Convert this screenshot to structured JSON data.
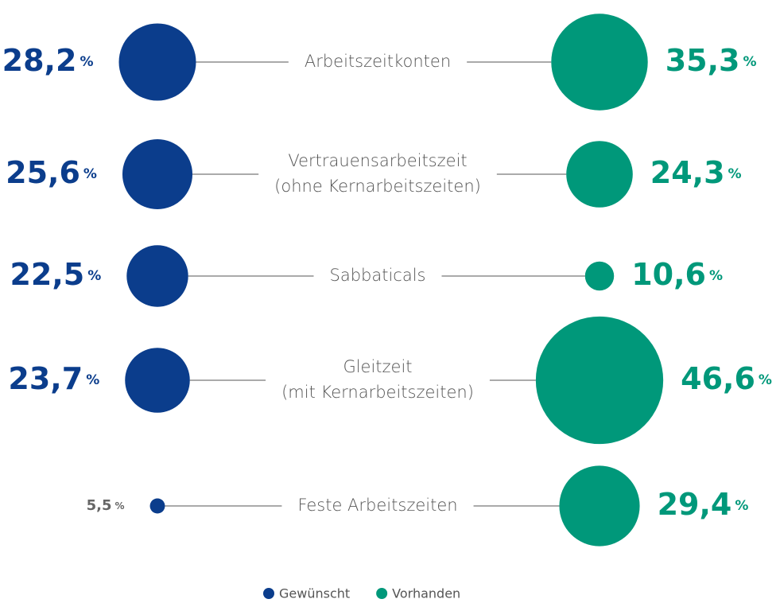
{
  "chart_data": {
    "type": "paired-bubble",
    "categories": [
      [
        "Arbeitszeitkonten"
      ],
      [
        "Vertrauensarbeitszeit",
        "(ohne Kernarbeitszeiten)"
      ],
      [
        "Sabbaticals"
      ],
      [
        "Gleitzeit",
        "(mit Kernarbeitszeiten)"
      ],
      [
        "Feste Arbeitszeiten"
      ]
    ],
    "unit": "%",
    "series": [
      {
        "name": "Gewünscht",
        "color": "#0b3d8c",
        "values": [
          28.2,
          25.6,
          22.5,
          23.7,
          5.5
        ],
        "value_labels": [
          "28,2",
          "25,6",
          "22,5",
          "23,7",
          "5,5"
        ]
      },
      {
        "name": "Vorhanden",
        "color": "#00987a",
        "values": [
          35.3,
          24.3,
          10.6,
          46.6,
          29.4
        ],
        "value_labels": [
          "35,3",
          "24,3",
          "10,6",
          "46,6",
          "29,4"
        ]
      }
    ]
  }
}
